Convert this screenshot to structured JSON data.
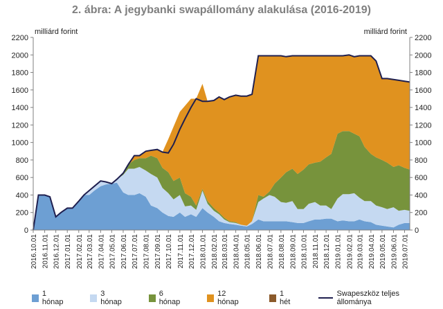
{
  "chart_data": {
    "type": "area",
    "title": "2. ábra: A jegybanki swapállomány alakulása (2016-2019)",
    "ylabel_left": "milliárd forint",
    "ylabel_right": "milliárd forint",
    "ylim": [
      0,
      2200
    ],
    "yticks": [
      0,
      200,
      400,
      600,
      800,
      1000,
      1200,
      1400,
      1600,
      1800,
      2000,
      2200
    ],
    "x_tick_labels": [
      "2016.10.01",
      "2016.11.01",
      "2016.12.01",
      "2017.01.01",
      "2017.02.01",
      "2017.03.01",
      "2017.04.01",
      "2017.05.01",
      "2017.06.01",
      "2017.07.01",
      "2017.08.01",
      "2017.09.01",
      "2017.10.01",
      "2017.11.01",
      "2017.12.01",
      "2018.01.01",
      "2018.02.01",
      "2018.03.01",
      "2018.04.01",
      "2018.05.01",
      "2018.06.01",
      "2018.07.01",
      "2018.08.01",
      "2018.09.01",
      "2018.10.01",
      "2018.11.01",
      "2018.12.01",
      "2019.01.01",
      "2019.02.01",
      "2019.03.01",
      "2019.04.01",
      "2019.05.01",
      "2019.06.01",
      "2019.07.01"
    ],
    "x": [
      "2016-10-01",
      "2016-10-15",
      "2016-11-01",
      "2016-11-15",
      "2016-12-01",
      "2016-12-15",
      "2017-01-01",
      "2017-01-15",
      "2017-02-01",
      "2017-02-15",
      "2017-03-01",
      "2017-03-15",
      "2017-04-01",
      "2017-04-15",
      "2017-05-01",
      "2017-05-15",
      "2017-06-01",
      "2017-06-15",
      "2017-07-01",
      "2017-07-15",
      "2017-08-01",
      "2017-08-15",
      "2017-09-01",
      "2017-09-15",
      "2017-10-01",
      "2017-10-15",
      "2017-11-01",
      "2017-11-15",
      "2017-12-01",
      "2017-12-15",
      "2018-01-01",
      "2018-01-15",
      "2018-02-01",
      "2018-02-15",
      "2018-03-01",
      "2018-03-15",
      "2018-04-01",
      "2018-04-15",
      "2018-05-01",
      "2018-05-15",
      "2018-06-01",
      "2018-06-15",
      "2018-07-01",
      "2018-07-15",
      "2018-08-01",
      "2018-08-15",
      "2018-09-01",
      "2018-09-15",
      "2018-10-01",
      "2018-10-15",
      "2018-11-01",
      "2018-11-15",
      "2018-12-01",
      "2018-12-15",
      "2019-01-01",
      "2019-01-15",
      "2019-02-01",
      "2019-02-15",
      "2019-03-01",
      "2019-03-15",
      "2019-04-01",
      "2019-04-15",
      "2019-05-01",
      "2019-05-15",
      "2019-06-01",
      "2019-06-15",
      "2019-07-01",
      "2019-07-15"
    ],
    "series": [
      {
        "name": "1 hónap",
        "color": "#6d9fd3",
        "values": [
          0,
          400,
          400,
          380,
          150,
          200,
          250,
          250,
          330,
          400,
          400,
          450,
          500,
          520,
          530,
          540,
          430,
          400,
          400,
          420,
          380,
          280,
          250,
          200,
          160,
          150,
          200,
          150,
          180,
          150,
          250,
          200,
          150,
          100,
          80,
          70,
          60,
          50,
          40,
          70,
          120,
          100,
          100,
          100,
          100,
          100,
          90,
          80,
          80,
          100,
          120,
          120,
          130,
          130,
          100,
          110,
          100,
          100,
          120,
          100,
          90,
          60,
          50,
          40,
          30,
          60,
          80,
          80
        ]
      },
      {
        "name": "3 hónap",
        "color": "#c5d9f1",
        "values": [
          0,
          0,
          0,
          0,
          0,
          0,
          0,
          0,
          0,
          0,
          50,
          50,
          60,
          30,
          0,
          40,
          200,
          300,
          300,
          300,
          300,
          360,
          350,
          280,
          260,
          200,
          200,
          120,
          100,
          80,
          200,
          100,
          70,
          80,
          40,
          20,
          20,
          10,
          10,
          30,
          200,
          260,
          300,
          280,
          220,
          210,
          240,
          160,
          160,
          200,
          200,
          160,
          150,
          110,
          260,
          300,
          310,
          320,
          250,
          230,
          240,
          220,
          210,
          200,
          230,
          160,
          150,
          140
        ]
      },
      {
        "name": "6 hónap",
        "color": "#77933c",
        "values": [
          0,
          0,
          0,
          0,
          0,
          0,
          0,
          0,
          0,
          0,
          0,
          0,
          0,
          0,
          0,
          0,
          20,
          50,
          100,
          100,
          140,
          210,
          220,
          230,
          240,
          210,
          200,
          150,
          100,
          50,
          20,
          30,
          30,
          20,
          20,
          10,
          10,
          0,
          0,
          0,
          80,
          20,
          40,
          150,
          280,
          350,
          370,
          400,
          450,
          450,
          450,
          500,
          550,
          630,
          740,
          720,
          720,
          680,
          700,
          620,
          540,
          550,
          540,
          530,
          460,
          520,
          480,
          470
        ]
      },
      {
        "name": "12 hónap",
        "color": "#e0921f",
        "values": [
          0,
          0,
          0,
          0,
          0,
          0,
          0,
          0,
          0,
          0,
          0,
          0,
          0,
          0,
          0,
          0,
          0,
          0,
          50,
          30,
          80,
          60,
          100,
          180,
          380,
          620,
          750,
          1000,
          1120,
          1220,
          1200,
          1140,
          1230,
          1320,
          1350,
          1420,
          1450,
          1470,
          1480,
          1450,
          1590,
          1610,
          1550,
          1460,
          1390,
          1320,
          1290,
          1350,
          1300,
          1240,
          1220,
          1210,
          1160,
          1120,
          890,
          860,
          870,
          880,
          920,
          1040,
          1120,
          1100,
          930,
          960,
          1000,
          970,
          990,
          1000
        ]
      },
      {
        "name": "1 hét",
        "color": "#8b5a2b",
        "values": [
          0,
          0,
          0,
          0,
          0,
          0,
          0,
          0,
          0,
          0,
          0,
          0,
          0,
          0,
          0,
          0,
          0,
          0,
          0,
          0,
          0,
          0,
          0,
          0,
          0,
          0,
          0,
          0,
          0,
          0,
          0,
          0,
          0,
          0,
          0,
          0,
          0,
          0,
          0,
          0,
          0,
          0,
          0,
          0,
          0,
          0,
          0,
          0,
          0,
          0,
          0,
          0,
          0,
          0,
          0,
          0,
          0,
          0,
          0,
          0,
          0,
          0,
          0,
          0,
          0,
          0,
          0,
          0
        ]
      },
      {
        "name": "Swapeszköz teljes állománya",
        "type": "line",
        "color": "#1f1f4f",
        "values": [
          0,
          400,
          400,
          380,
          150,
          200,
          250,
          250,
          330,
          400,
          450,
          500,
          560,
          550,
          530,
          580,
          650,
          750,
          850,
          850,
          900,
          910,
          920,
          890,
          880,
          980,
          1150,
          1270,
          1400,
          1500,
          1470,
          1470,
          1480,
          1520,
          1490,
          1520,
          1540,
          1530,
          1530,
          1550,
          1990,
          1990,
          1990,
          1990,
          1990,
          1980,
          1990,
          1990,
          1990,
          1990,
          1990,
          1990,
          1990,
          1990,
          1990,
          1990,
          2000,
          1980,
          1990,
          1990,
          1990,
          1930,
          1730,
          1730,
          1720,
          1710,
          1700,
          1690
        ]
      }
    ],
    "legend": "bottom",
    "grid": false
  }
}
